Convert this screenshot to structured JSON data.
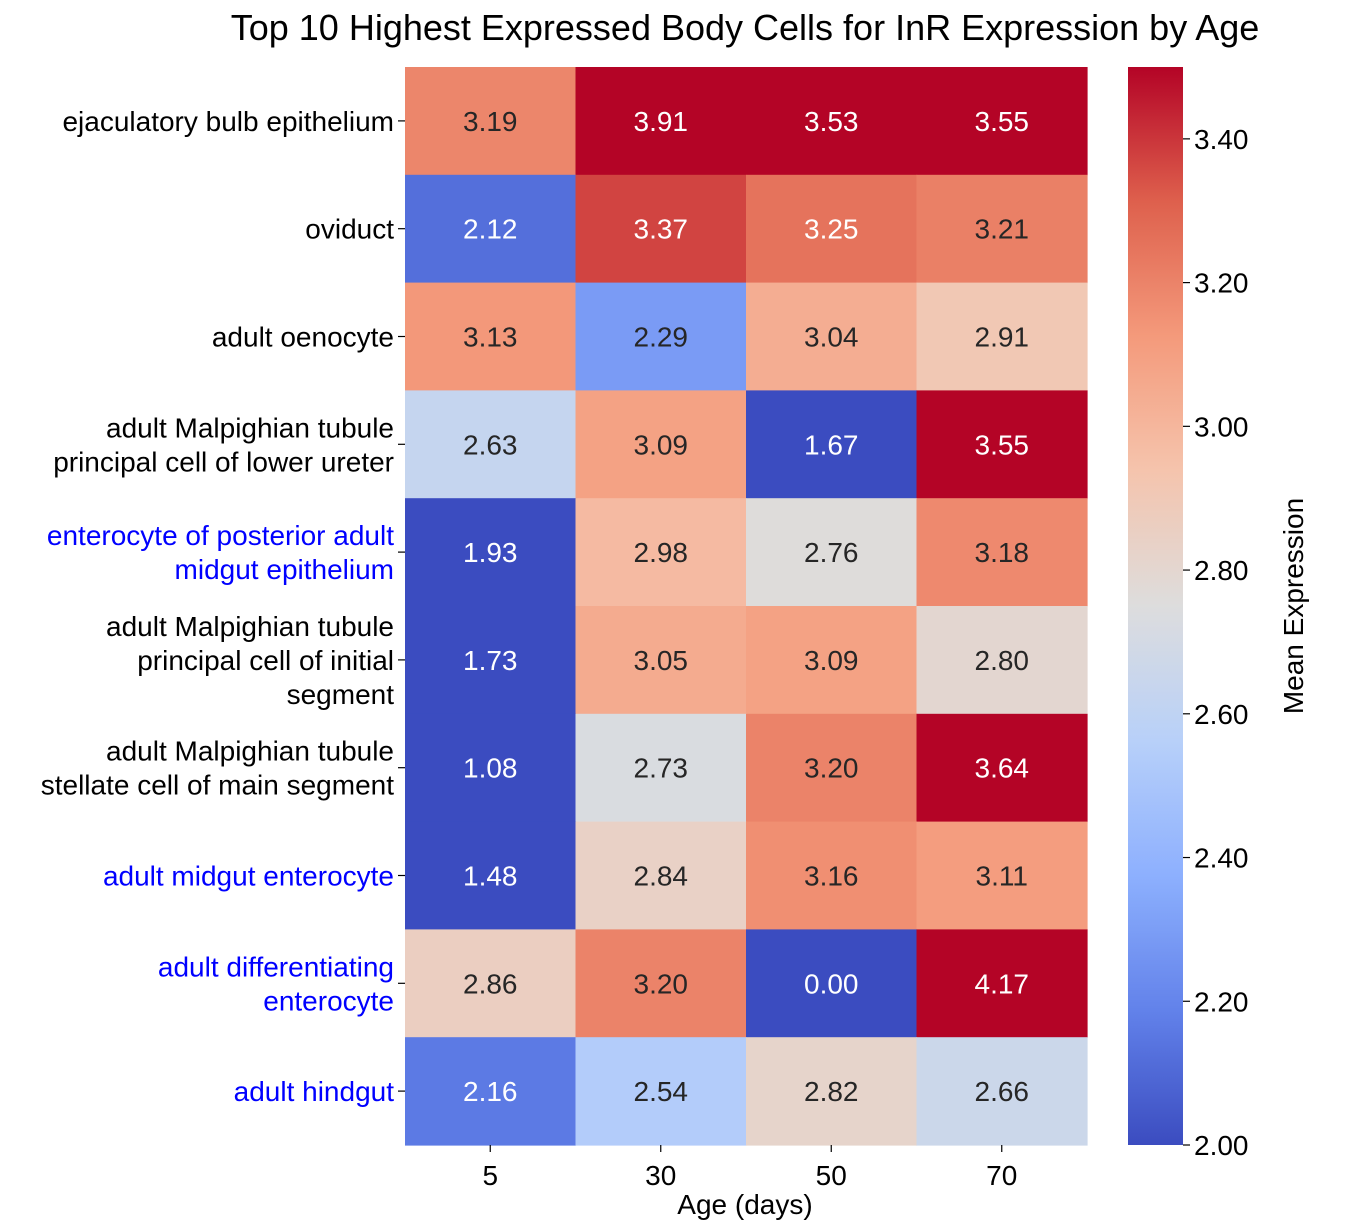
{
  "chart_data": {
    "type": "heatmap",
    "title": "Top 10 Highest Expressed Body Cells for InR Expression by Age",
    "xlabel": "Age (days)",
    "ylabel": "",
    "x_categories": [
      "5",
      "30",
      "50",
      "70"
    ],
    "y_categories": [
      {
        "lines": [
          "ejaculatory bulb epithelium"
        ],
        "highlight": false
      },
      {
        "lines": [
          "oviduct"
        ],
        "highlight": false
      },
      {
        "lines": [
          "adult oenocyte"
        ],
        "highlight": false
      },
      {
        "lines": [
          "adult Malpighian tubule",
          "principal cell of lower ureter"
        ],
        "highlight": false
      },
      {
        "lines": [
          "enterocyte of posterior adult",
          "midgut epithelium"
        ],
        "highlight": true
      },
      {
        "lines": [
          "adult Malpighian tubule",
          "principal cell of initial",
          "segment"
        ],
        "highlight": false
      },
      {
        "lines": [
          "adult Malpighian tubule",
          "stellate cell of main segment"
        ],
        "highlight": false
      },
      {
        "lines": [
          "adult midgut enterocyte"
        ],
        "highlight": true
      },
      {
        "lines": [
          "adult differentiating",
          "enterocyte"
        ],
        "highlight": true
      },
      {
        "lines": [
          "adult hindgut"
        ],
        "highlight": true
      }
    ],
    "values": [
      [
        3.19,
        3.91,
        3.53,
        3.55
      ],
      [
        2.12,
        3.37,
        3.25,
        3.21
      ],
      [
        3.13,
        2.29,
        3.04,
        2.91
      ],
      [
        2.63,
        3.09,
        1.67,
        3.55
      ],
      [
        1.93,
        2.98,
        2.76,
        3.18
      ],
      [
        1.73,
        3.05,
        3.09,
        2.8
      ],
      [
        1.08,
        2.73,
        3.2,
        3.64
      ],
      [
        1.48,
        2.84,
        3.16,
        3.11
      ],
      [
        2.86,
        3.2,
        0.0,
        4.17
      ],
      [
        2.16,
        2.54,
        2.82,
        2.66
      ]
    ],
    "value_format": "0.00",
    "colormap": "coolwarm",
    "vmin": 2.0,
    "vmax": 3.5,
    "colorbar": {
      "label": "Mean Expression",
      "ticks": [
        2.0,
        2.2,
        2.4,
        2.6,
        2.8,
        3.0,
        3.2,
        3.4
      ],
      "tick_labels": [
        "2.00",
        "2.20",
        "2.40",
        "2.60",
        "2.80",
        "3.00",
        "3.20",
        "3.40"
      ]
    },
    "colors": {
      "highlight_label": "#0000ff",
      "normal_label": "#000000",
      "light_text": "#ffffff",
      "dark_text": "#262626"
    }
  }
}
